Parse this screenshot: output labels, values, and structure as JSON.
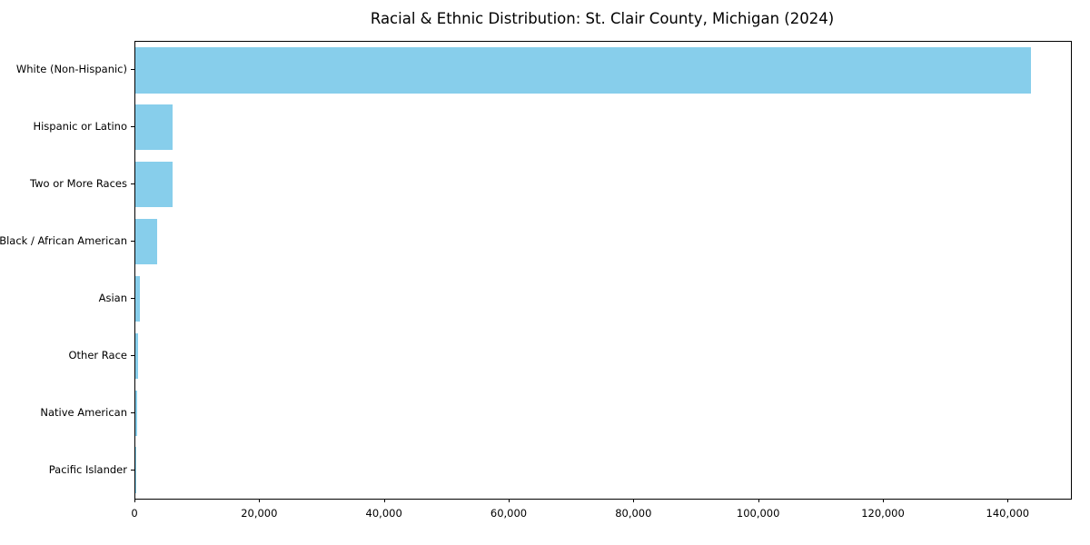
{
  "chart_data": {
    "type": "bar",
    "orientation": "horizontal",
    "title": "Racial & Ethnic Distribution: St. Clair County, Michigan (2024)",
    "categories": [
      "White (Non-Hispanic)",
      "Hispanic or Latino",
      "Two or More Races",
      "Black / African American",
      "Asian",
      "Other Race",
      "Native American",
      "Pacific Islander"
    ],
    "values": [
      143600,
      6000,
      5900,
      3500,
      800,
      500,
      250,
      40
    ],
    "xlabel": "",
    "ylabel": "",
    "xlim": [
      0,
      150000
    ],
    "xticks": [
      0,
      20000,
      40000,
      60000,
      80000,
      100000,
      120000,
      140000
    ],
    "xtick_labels": [
      "0",
      "20,000",
      "40,000",
      "60,000",
      "80,000",
      "100,000",
      "120,000",
      "140,000"
    ],
    "bar_color": "#87CEEB",
    "grid": false,
    "legend": "none"
  }
}
